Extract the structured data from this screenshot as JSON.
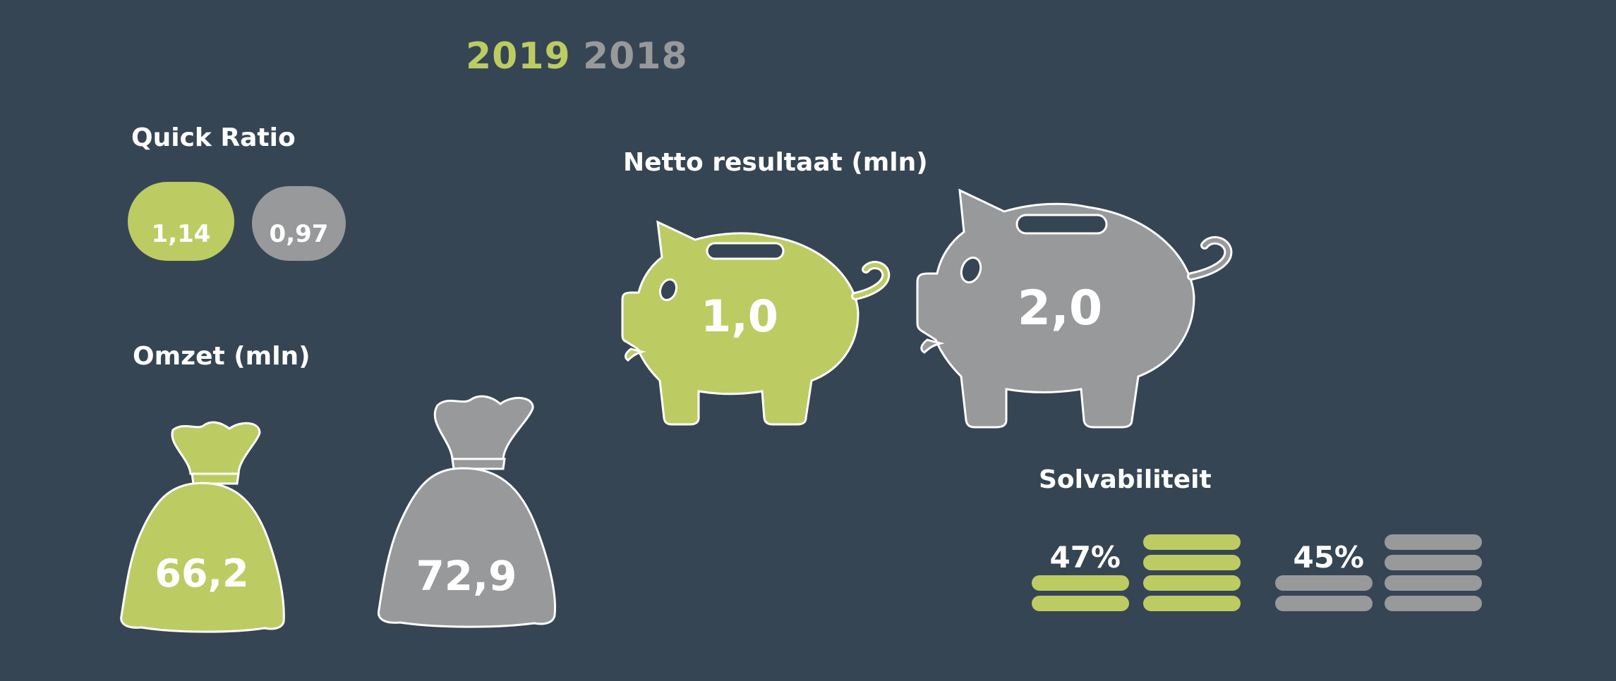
{
  "colors": {
    "background": "#364554",
    "y2019": "#bccc62",
    "y2018": "#98999a",
    "text": "#ffffff"
  },
  "legend": {
    "year_2019": "2019",
    "year_2018": "2018"
  },
  "chart_data": [
    {
      "type": "bar",
      "title": "Quick Ratio",
      "categories": [
        "2019",
        "2018"
      ],
      "labels": [
        "1,14",
        "0,97"
      ],
      "values": [
        1.14,
        0.97
      ]
    },
    {
      "type": "bar",
      "title": "Omzet (mln)",
      "categories": [
        "2019",
        "2018"
      ],
      "labels": [
        "66,2",
        "72,9"
      ],
      "values": [
        66.2,
        72.9
      ]
    },
    {
      "type": "bar",
      "title": "Netto resultaat (mln)",
      "categories": [
        "2019",
        "2018"
      ],
      "labels": [
        "1,0",
        "2,0"
      ],
      "values": [
        1.0,
        2.0
      ]
    },
    {
      "type": "bar",
      "title": "Solvabiliteit",
      "categories": [
        "2019",
        "2018"
      ],
      "labels": [
        "47%",
        "45%"
      ],
      "values": [
        47,
        45
      ]
    }
  ]
}
